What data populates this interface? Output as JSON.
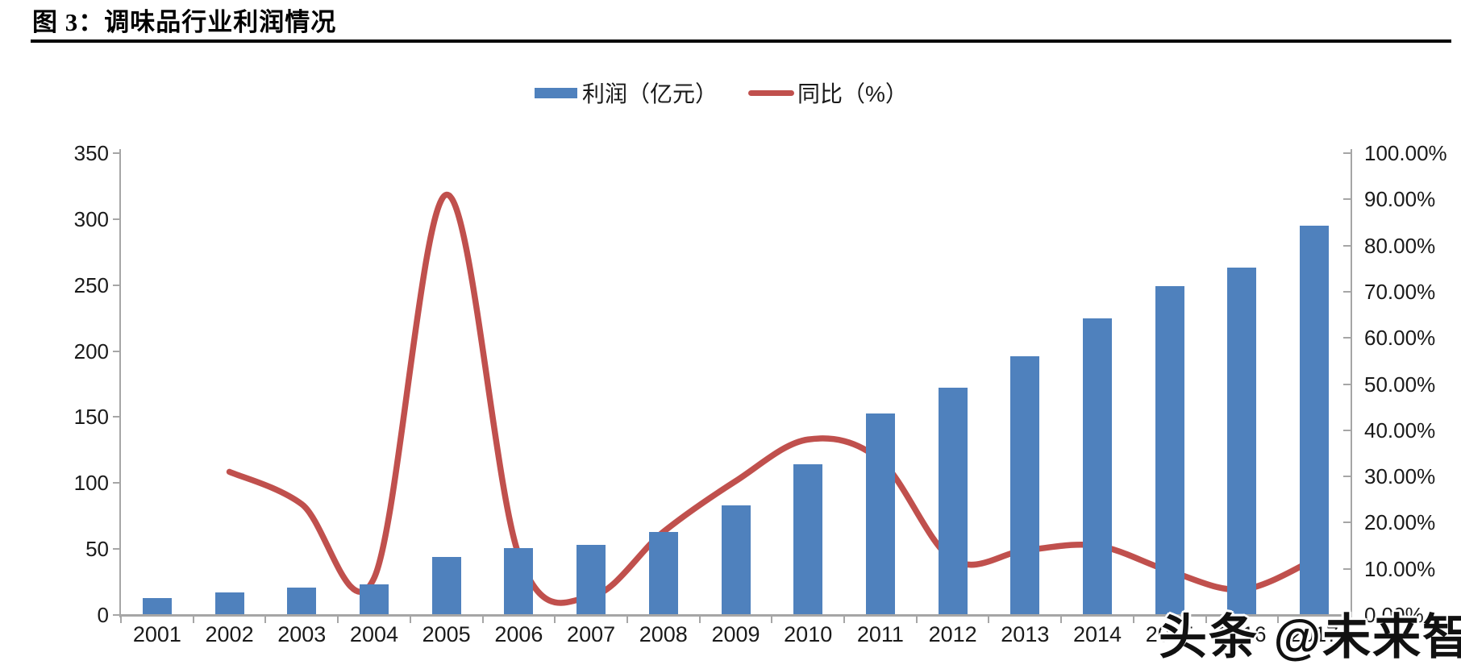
{
  "page": {
    "title": "图 3：调味品行业利润情况",
    "watermark": "头条 @未来智库"
  },
  "legend": {
    "profit_label": "利润（亿元）",
    "yoy_label": "同比（%）"
  },
  "colors": {
    "bar": "#4F81BD",
    "line": "#C0504D",
    "axis": "#A6A6A6",
    "text": "#1a1a1a"
  },
  "chart_data": {
    "type": "bar+line",
    "title": "图 3：调味品行业利润情况",
    "categories": [
      "2001",
      "2002",
      "2003",
      "2004",
      "2005",
      "2006",
      "2007",
      "2008",
      "2009",
      "2010",
      "2011",
      "2012",
      "2013",
      "2014",
      "2015",
      "2016",
      "2017"
    ],
    "series": [
      {
        "name": "利润（亿元）",
        "type": "bar",
        "axis": "left",
        "color": "#4F81BD",
        "values": [
          13,
          17,
          21,
          23,
          44,
          51,
          53,
          63,
          83,
          114,
          153,
          172,
          196,
          225,
          249,
          263,
          295
        ]
      },
      {
        "name": "同比（%）",
        "type": "line",
        "axis": "right",
        "color": "#C0504D",
        "values": [
          null,
          31,
          24,
          8,
          91,
          13,
          4,
          18,
          29,
          38,
          33.5,
          12,
          14,
          15,
          9.5,
          5.5,
          12
        ]
      }
    ],
    "left_axis": {
      "min": 0,
      "max": 350,
      "step": 50,
      "labels": [
        "0",
        "50",
        "100",
        "150",
        "200",
        "250",
        "300",
        "350"
      ]
    },
    "right_axis": {
      "min": 0,
      "max": 100,
      "step": 10,
      "labels": [
        "0.00%",
        "10.00%",
        "20.00%",
        "30.00%",
        "40.00%",
        "50.00%",
        "60.00%",
        "70.00%",
        "80.00%",
        "90.00%",
        "100.00%"
      ]
    },
    "legend_position": "top-center",
    "grid": false,
    "xlabel": "",
    "ylabel_left": "利润（亿元）",
    "ylabel_right": "同比（%）"
  }
}
